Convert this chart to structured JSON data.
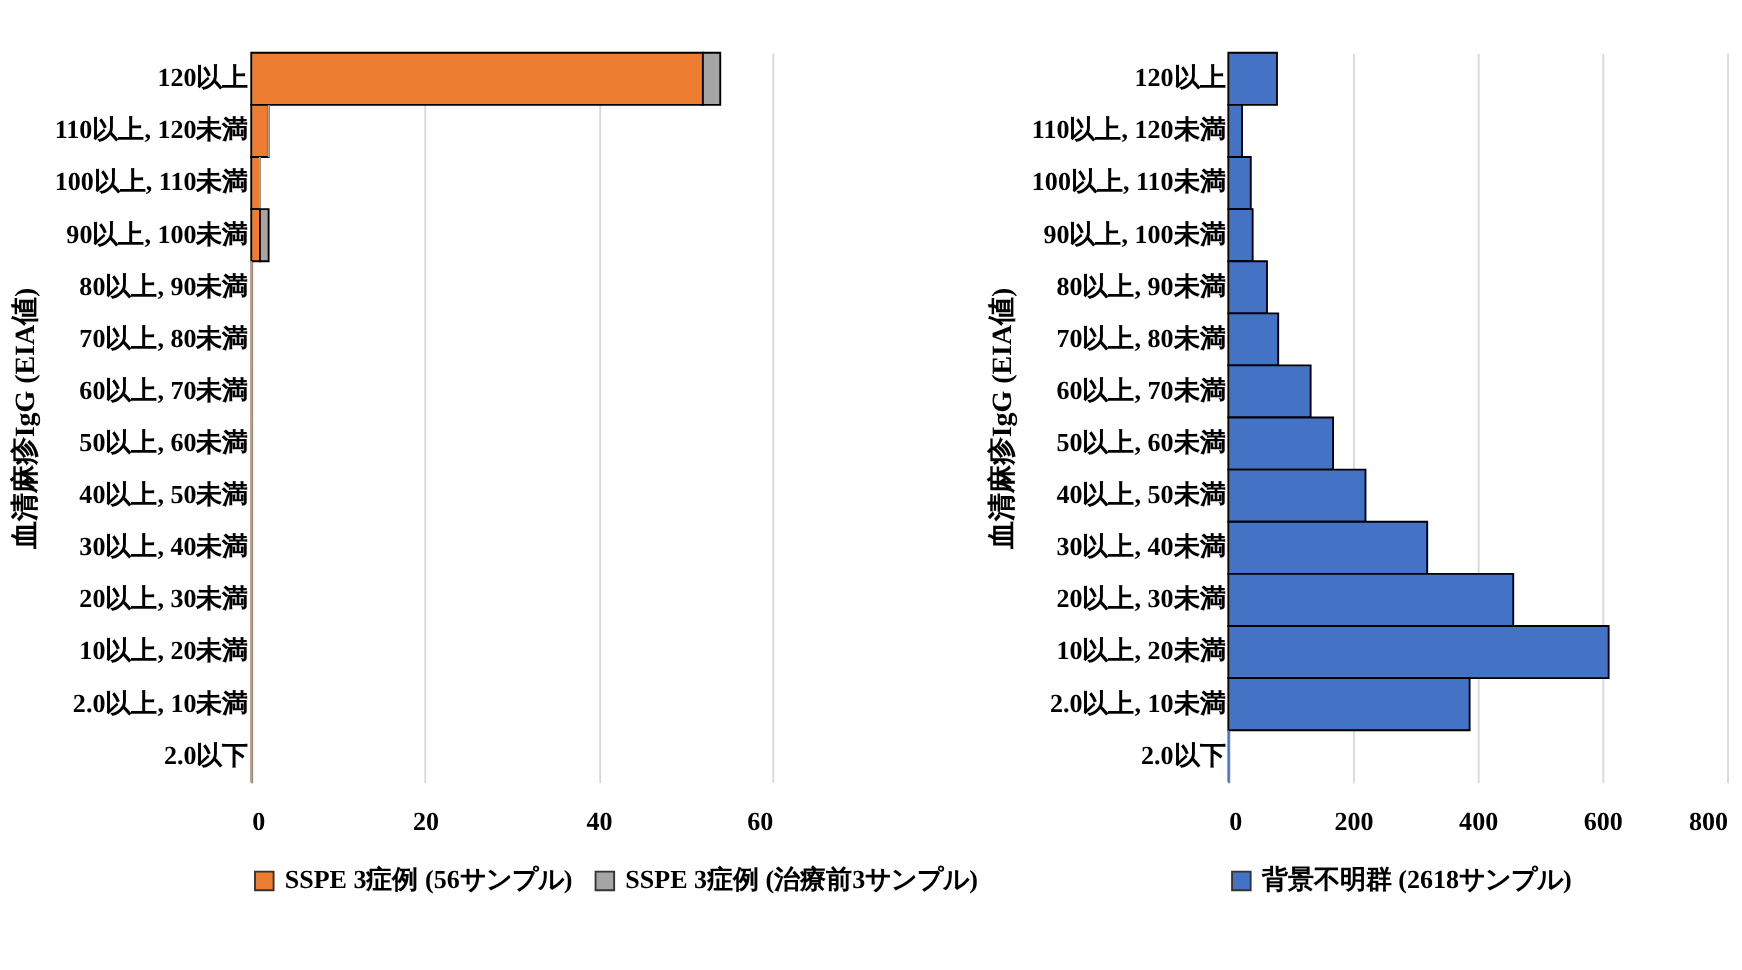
{
  "chart_data": [
    {
      "type": "bar",
      "orientation": "horizontal",
      "stacked": true,
      "ylabel": "血清麻疹IgG (EIA値)",
      "categories": [
        "120以上",
        "110以上, 120未満",
        "100以上, 110未満",
        "90以上, 100未満",
        "80以上, 90未満",
        "70以上, 80未満",
        "60以上, 70未満",
        "50以上, 60未満",
        "40以上, 50未満",
        "30以上, 40未満",
        "20以上, 30未満",
        "10以上, 20未満",
        "2.0以上, 10未満",
        "2.0以下"
      ],
      "series": [
        {
          "name": "SSPE 3症例 (56サンプル)",
          "color": "#ed7d31",
          "values": [
            52,
            2,
            1,
            1,
            0,
            0,
            0,
            0,
            0,
            0,
            0,
            0,
            0,
            0
          ]
        },
        {
          "name": "SSPE 3症例 (治療前3サンプル)",
          "color": "#a5a5a5",
          "values": [
            2,
            0,
            0,
            1,
            0,
            0,
            0,
            0,
            0,
            0,
            0,
            0,
            0,
            0
          ]
        }
      ],
      "xlim": [
        0,
        60
      ],
      "xticks": [
        0,
        20,
        40,
        60
      ],
      "grid": "x",
      "legend": "bottom"
    },
    {
      "type": "bar",
      "orientation": "horizontal",
      "ylabel": "血清麻疹IgG (EIA値)",
      "categories": [
        "120以上",
        "110以上, 120未満",
        "100以上, 110未満",
        "90以上, 100未満",
        "80以上, 90未満",
        "70以上, 80未満",
        "60以上, 70未満",
        "50以上, 60未満",
        "40以上, 50未満",
        "30以上, 40未満",
        "20以上, 30未満",
        "10以上, 20未満",
        "2.0以上, 10未満",
        "2.0以下"
      ],
      "series": [
        {
          "name": "背景不明群 (2618サンプル)",
          "color": "#4472c4",
          "values": [
            78,
            22,
            36,
            39,
            62,
            80,
            132,
            168,
            220,
            319,
            457,
            610,
            387,
            0
          ]
        }
      ],
      "xlim": [
        0,
        800
      ],
      "xticks": [
        0,
        200,
        400,
        600,
        800
      ],
      "grid": "x",
      "legend": "bottom"
    }
  ]
}
